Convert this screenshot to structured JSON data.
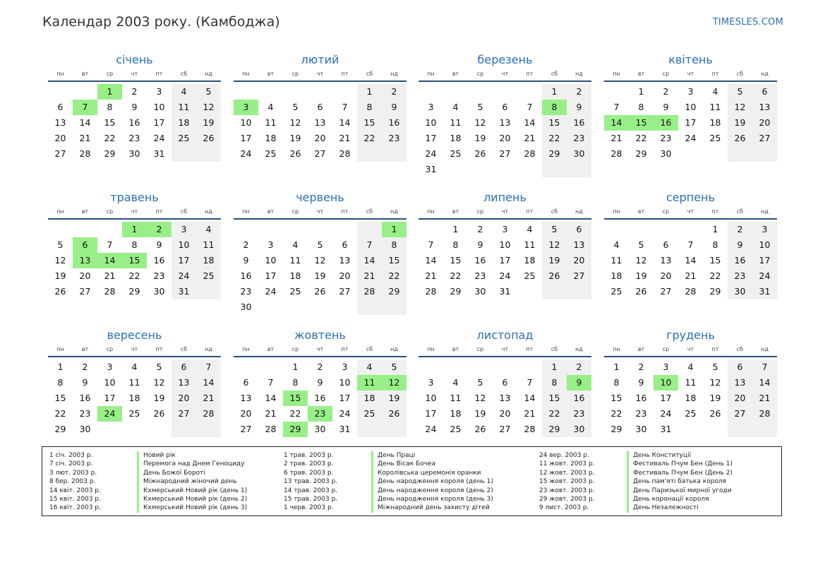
{
  "header": {
    "title": "Календар 2003 року. (Камбоджа)",
    "site": "TIMESLES.COM"
  },
  "weekdays": [
    "пн",
    "вт",
    "ср",
    "чт",
    "пт",
    "сб",
    "нд"
  ],
  "months": [
    {
      "name": "січень",
      "offset": 2,
      "days": 31,
      "holidays": [
        1,
        7
      ]
    },
    {
      "name": "лютий",
      "offset": 5,
      "days": 28,
      "holidays": [
        3
      ]
    },
    {
      "name": "березень",
      "offset": 5,
      "days": 31,
      "holidays": [
        8
      ]
    },
    {
      "name": "квітень",
      "offset": 1,
      "days": 30,
      "holidays": [
        14,
        15,
        16
      ]
    },
    {
      "name": "травень",
      "offset": 3,
      "days": 31,
      "holidays": [
        1,
        2,
        6,
        13,
        14,
        15
      ]
    },
    {
      "name": "червень",
      "offset": 6,
      "days": 30,
      "holidays": [
        1
      ]
    },
    {
      "name": "липень",
      "offset": 1,
      "days": 31,
      "holidays": []
    },
    {
      "name": "серпень",
      "offset": 4,
      "days": 31,
      "holidays": []
    },
    {
      "name": "вересень",
      "offset": 0,
      "days": 30,
      "holidays": [
        24
      ]
    },
    {
      "name": "жовтень",
      "offset": 2,
      "days": 31,
      "holidays": [
        11,
        12,
        15,
        23,
        29
      ]
    },
    {
      "name": "листопад",
      "offset": 5,
      "days": 30,
      "holidays": [
        9
      ]
    },
    {
      "name": "грудень",
      "offset": 0,
      "days": 31,
      "holidays": [
        10
      ]
    }
  ],
  "legend": [
    [
      {
        "date": "1 січ. 2003 р.",
        "name": "Новий рік"
      },
      {
        "date": "7 січ. 2003 р.",
        "name": "Перемога над Днем Геноциду"
      },
      {
        "date": "3 лют. 2003 р.",
        "name": "День Божої Бороті"
      },
      {
        "date": "8 бер. 2003 р.",
        "name": "Міжнародний жіночий день"
      },
      {
        "date": "14 квіт. 2003 р.",
        "name": "Кхмерський Новий рік (день 1)"
      },
      {
        "date": "15 квіт. 2003 р.",
        "name": "Кхмерський Новий рік (день 2)"
      },
      {
        "date": "16 квіт. 2003 р.",
        "name": "Кхмерський Новий рік (день 3)"
      }
    ],
    [
      {
        "date": "1 трав. 2003 р.",
        "name": "День Праці"
      },
      {
        "date": "2 трав. 2003 р.",
        "name": "День Вісак Бочеа"
      },
      {
        "date": "6 трав. 2003 р.",
        "name": "Королівська церемонія оранки"
      },
      {
        "date": "13 трав. 2003 р.",
        "name": "День народження короля (день 1)"
      },
      {
        "date": "14 трав. 2003 р.",
        "name": "День народження короля (день 2)"
      },
      {
        "date": "15 трав. 2003 р.",
        "name": "День народження короля (день 3)"
      },
      {
        "date": "1 черв. 2003 р.",
        "name": "Міжнародний день захисту дітей"
      }
    ],
    [
      {
        "date": "24 вер. 2003 р.",
        "name": "День Конституції"
      },
      {
        "date": "11 жовт. 2003 р.",
        "name": "Фестиваль Пчум Бен (День 1)"
      },
      {
        "date": "12 жовт. 2003 р.",
        "name": "Фестиваль Пчум Бен (День 2)"
      },
      {
        "date": "15 жовт. 2003 р.",
        "name": "День пам'яті батька короля"
      },
      {
        "date": "23 жовт. 2003 р.",
        "name": "День Паризької мирної угоди"
      },
      {
        "date": "29 жовт. 2003 р.",
        "name": "День коронації короля"
      },
      {
        "date": "9 лист. 2003 р.",
        "name": "День Незалежності"
      }
    ]
  ]
}
